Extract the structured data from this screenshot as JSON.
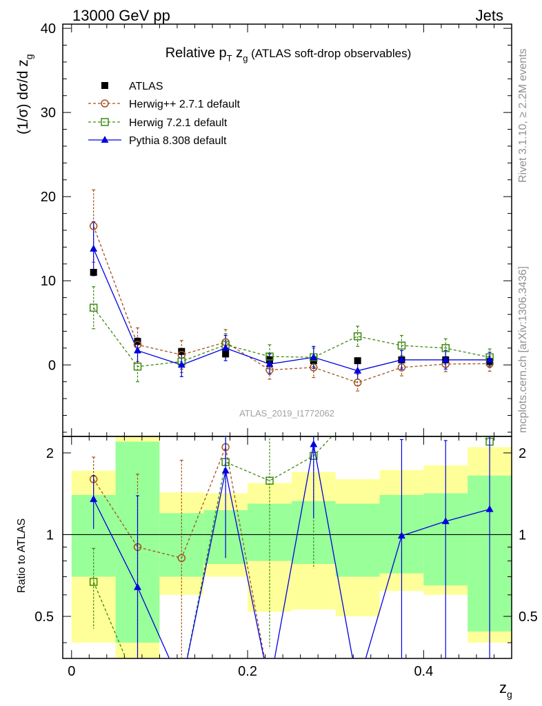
{
  "header": {
    "left": "13000 GeV pp",
    "right": "Jets"
  },
  "side_text": {
    "rivet": "Rivet 3.1.10, ≥ 2.2M events",
    "mcplots": "mcplots.cern.ch [arXiv:1306.3436]"
  },
  "chart_data": {
    "type": "scatter",
    "title_main": "Relative p",
    "title_sub_T": "T",
    "title_mid": " z",
    "title_sub_g": "g",
    "title_tail": " (ATLAS soft-drop observables)",
    "analysis_label": "ATLAS_2019_I1772062",
    "ylabel_main": "(1/σ) dσ/d z",
    "ylabel_sub": "g",
    "ylabel_ratio": "Ratio to ATLAS",
    "xlabel_main": "z",
    "xlabel_sub": "g",
    "xlim": [
      -0.01,
      0.5
    ],
    "ylim_main": [
      -8.5,
      40.5
    ],
    "ylim_ratio": [
      0.35,
      2.3
    ],
    "x_ticks": [
      "0",
      "0.2",
      "0.4"
    ],
    "x_tick_values": [
      0,
      0.2,
      0.4
    ],
    "y_ticks_main": [
      "0",
      "10",
      "20",
      "30",
      "40"
    ],
    "y_tick_values_main": [
      0,
      10,
      20,
      30,
      40
    ],
    "y_ticks_ratio": [
      "0.5",
      "1",
      "2"
    ],
    "y_tick_values_ratio": [
      0.5,
      1,
      2
    ],
    "bin_edges": [
      0,
      0.05,
      0.1,
      0.15,
      0.2,
      0.25,
      0.3,
      0.35,
      0.4,
      0.45,
      0.5
    ],
    "x": [
      0.025,
      0.075,
      0.125,
      0.175,
      0.225,
      0.275,
      0.325,
      0.375,
      0.425,
      0.475
    ],
    "legend": [
      "ATLAS",
      "Herwig++ 2.7.1 default",
      "Herwig 7.2.1 default",
      "Pythia 8.308 default"
    ],
    "series": [
      {
        "name": "ATLAS",
        "color": "#000000",
        "marker": "square-filled",
        "values": [
          11.0,
          2.8,
          1.6,
          1.3,
          0.6,
          0.5,
          0.5,
          0.6,
          0.6,
          0.4
        ]
      },
      {
        "name": "Herwig++ 2.7.1 default",
        "color": "#a0521c",
        "marker": "circle-open",
        "values": [
          16.5,
          2.4,
          1.2,
          2.7,
          -0.6,
          -0.3,
          -2.1,
          -0.3,
          0.1,
          0.15
        ],
        "errors": [
          4.3,
          2.0,
          1.7,
          1.5,
          1.1,
          1.2,
          1.0,
          1.0,
          0.9,
          0.9
        ],
        "ratio": [
          1.6,
          0.9,
          0.82,
          2.1,
          null,
          null,
          null,
          null,
          null,
          null
        ],
        "ratio_err": [
          0.33,
          0.77,
          1.06,
          0.29,
          null,
          null,
          null,
          null,
          null,
          null
        ]
      },
      {
        "name": "Herwig 7.2.1 default",
        "color": "#3a8a10",
        "marker": "square-open",
        "values": [
          6.8,
          -0.2,
          0.4,
          2.4,
          1.0,
          0.9,
          3.4,
          2.3,
          2.0,
          0.9
        ],
        "errors": [
          2.5,
          1.8,
          1.3,
          1.3,
          1.4,
          1.1,
          1.2,
          1.2,
          1.1,
          1.0
        ],
        "ratio": [
          0.67,
          null,
          null,
          1.85,
          1.58,
          1.95,
          null,
          null,
          null,
          2.2
        ],
        "ratio_err": [
          0.22,
          null,
          null,
          0.45,
          1.2,
          1.2,
          null,
          null,
          null,
          0.2
        ]
      },
      {
        "name": "Pythia 8.308 default",
        "color": "#0000e0",
        "marker": "triangle-filled",
        "values": [
          13.8,
          1.7,
          0.0,
          2.0,
          0.1,
          0.9,
          -0.7,
          0.6,
          0.6,
          0.6
        ],
        "errors": [
          3.2,
          1.5,
          1.4,
          1.5,
          1.2,
          1.3,
          1.0,
          1.1,
          1.1,
          0.9
        ],
        "ratio": [
          1.35,
          0.64,
          null,
          1.72,
          null,
          2.15,
          null,
          0.99,
          1.12,
          1.24
        ],
        "ratio_err": [
          0.3,
          0.75,
          null,
          0.9,
          null,
          1.0,
          null,
          1.25,
          1.1,
          1.2
        ]
      }
    ],
    "ratio_band_inner": [
      [
        0.7,
        1.4
      ],
      [
        0.4,
        2.2
      ],
      [
        0.7,
        1.2
      ],
      [
        0.78,
        1.23
      ],
      [
        0.8,
        1.3
      ],
      [
        0.78,
        1.33
      ],
      [
        0.7,
        1.3
      ],
      [
        0.72,
        1.4
      ],
      [
        0.65,
        1.42
      ],
      [
        0.44,
        1.65
      ]
    ],
    "ratio_band_outer": [
      [
        0.4,
        1.72
      ],
      [
        0.3,
        2.5
      ],
      [
        0.6,
        1.43
      ],
      [
        0.7,
        1.42
      ],
      [
        0.52,
        1.55
      ],
      [
        0.53,
        1.7
      ],
      [
        0.5,
        1.6
      ],
      [
        0.62,
        1.73
      ],
      [
        0.6,
        1.8
      ],
      [
        0.4,
        2.1
      ]
    ]
  }
}
